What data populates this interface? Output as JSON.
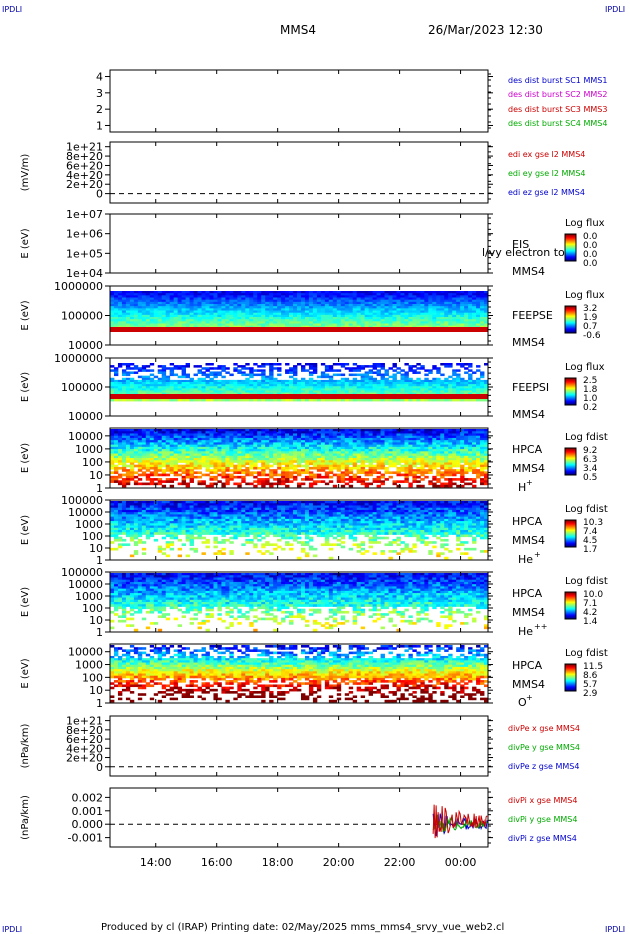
{
  "header": {
    "corner_tl": "IPDLI",
    "corner_tr": "IPDLI",
    "corner_bl": "IPDLI",
    "corner_br": "IPDLI",
    "spacecraft": "MMS4",
    "datetime": "26/Mar/2023 12:30"
  },
  "footer": {
    "text": "Produced by cl (IRAP)   Printing date: 02/May/2025   mms_mms4_srvy_vue_web2.cl"
  },
  "time_axis": {
    "start_hour": 12.5,
    "end_hour": 24.9,
    "tick_labels": [
      "14:00",
      "16:00",
      "18:00",
      "20:00",
      "22:00",
      "00:00"
    ],
    "tick_hours": [
      14,
      16,
      18,
      20,
      22,
      24
    ]
  },
  "chart_data": [
    {
      "type": "line",
      "panel": "des-dist",
      "ylabel": "",
      "ylim": [
        0.6,
        4.4
      ],
      "yscale": "linear",
      "y_ticks": [
        "1",
        "2",
        "3",
        "4"
      ],
      "y_tick_values": [
        1,
        2,
        3,
        4
      ],
      "legend": [
        {
          "text": "des dist burst SC1 MMS1",
          "color": "#0000cc"
        },
        {
          "text": "des dist burst SC2 MMS2",
          "color": "#cc00cc"
        },
        {
          "text": "des dist burst SC3 MMS3",
          "color": "#cc0000"
        },
        {
          "text": "des dist burst SC4 MMS4",
          "color": "#00aa00"
        }
      ]
    },
    {
      "type": "line",
      "panel": "edi",
      "ylabel": "(mV/m)",
      "ylim": [
        -2e+20,
        1.1e+21
      ],
      "yscale": "linear",
      "y_ticks": [
        "1e+21",
        "8e+20",
        "6e+20",
        "4e+20",
        "2e+20",
        "0"
      ],
      "y_tick_values": [
        1e+21,
        8e+20,
        6e+20,
        4e+20,
        2e+20,
        0
      ],
      "zero_line": true,
      "legend": [
        {
          "text": "edi ex gse l2 MMS4",
          "color": "#cc0000"
        },
        {
          "text": "edi ey gse l2 MMS4",
          "color": "#00aa00"
        },
        {
          "text": "edi ez gse l2 MMS4",
          "color": "#0000cc"
        }
      ]
    },
    {
      "type": "heatmap",
      "panel": "eis",
      "ylabel": "E (eV)",
      "yscale": "log",
      "ylim": [
        10000.0,
        10000000.0
      ],
      "y_ticks": [
        "1e+07",
        "1e+06",
        "1e+05",
        "1e+04"
      ],
      "y_tick_values": [
        10000000.0,
        1000000.0,
        100000.0,
        10000.0
      ],
      "instrument": [
        "EIS",
        "MMS4"
      ],
      "overlay_label": "l/vy electron to",
      "colorbar_title": "Log flux",
      "colorbar_ticks": [
        "0.0",
        "0.0",
        "0.0",
        "0.0"
      ],
      "empty": true
    },
    {
      "type": "heatmap",
      "panel": "feepse",
      "ylabel": "E (eV)",
      "yscale": "log",
      "ylim": [
        10000,
        1000000
      ],
      "y_ticks": [
        "1000000",
        "100000",
        "10000"
      ],
      "y_tick_values": [
        1000000,
        100000,
        10000
      ],
      "instrument": [
        "FEEPSE",
        "MMS4"
      ],
      "colorbar_title": "Log flux",
      "colorbar_ticks": [
        "3.2",
        "1.9",
        "0.7",
        "-0.6"
      ]
    },
    {
      "type": "heatmap",
      "panel": "feepsi",
      "ylabel": "E (eV)",
      "yscale": "log",
      "ylim": [
        10000,
        1000000
      ],
      "y_ticks": [
        "1000000",
        "100000",
        "10000"
      ],
      "y_tick_values": [
        1000000,
        100000,
        10000
      ],
      "instrument": [
        "FEEPSI",
        "MMS4"
      ],
      "colorbar_title": "Log flux",
      "colorbar_ticks": [
        "2.5",
        "1.8",
        "1.0",
        "0.2"
      ]
    },
    {
      "type": "heatmap",
      "panel": "hpca-h",
      "ylabel": "E (eV)",
      "yscale": "log",
      "ylim": [
        1,
        40000
      ],
      "y_ticks": [
        "10000",
        "1000",
        "100",
        "10",
        "1"
      ],
      "y_tick_values": [
        10000,
        1000,
        100,
        10,
        1
      ],
      "instrument": [
        "HPCA",
        "MMS4"
      ],
      "species": "H",
      "species_sup": "+",
      "colorbar_title": "Log fdist",
      "colorbar_ticks": [
        "9.2",
        "6.3",
        "3.4",
        "0.5"
      ]
    },
    {
      "type": "heatmap",
      "panel": "hpca-he",
      "ylabel": "E (eV)",
      "yscale": "log",
      "ylim": [
        1,
        100000
      ],
      "y_ticks": [
        "100000",
        "10000",
        "1000",
        "100",
        "10",
        "1"
      ],
      "y_tick_values": [
        100000,
        10000,
        1000,
        100,
        10,
        1
      ],
      "instrument": [
        "HPCA",
        "MMS4"
      ],
      "species": "He",
      "species_sup": "+",
      "colorbar_title": "Log fdist",
      "colorbar_ticks": [
        "10.3",
        "7.4",
        "4.5",
        "1.7"
      ]
    },
    {
      "type": "heatmap",
      "panel": "hpca-hepp",
      "ylabel": "E (eV)",
      "yscale": "log",
      "ylim": [
        1,
        100000
      ],
      "y_ticks": [
        "100000",
        "10000",
        "1000",
        "100",
        "10",
        "1"
      ],
      "y_tick_values": [
        100000,
        10000,
        1000,
        100,
        10,
        1
      ],
      "instrument": [
        "HPCA",
        "MMS4"
      ],
      "species": "He",
      "species_sup": "++",
      "colorbar_title": "Log fdist",
      "colorbar_ticks": [
        "10.0",
        "7.1",
        "4.2",
        "1.4"
      ]
    },
    {
      "type": "heatmap",
      "panel": "hpca-o",
      "ylabel": "E (eV)",
      "yscale": "log",
      "ylim": [
        1,
        40000
      ],
      "y_ticks": [
        "10000",
        "1000",
        "100",
        "10",
        "1"
      ],
      "y_tick_values": [
        10000,
        1000,
        100,
        10,
        1
      ],
      "instrument": [
        "HPCA",
        "MMS4"
      ],
      "species": "O",
      "species_sup": "+",
      "colorbar_title": "Log fdist",
      "colorbar_ticks": [
        "11.5",
        "8.6",
        "5.7",
        "2.9"
      ]
    },
    {
      "type": "line",
      "panel": "divpe",
      "ylabel": "(nPa/km)",
      "ylim": [
        -2e+20,
        1.1e+21
      ],
      "yscale": "linear",
      "y_ticks": [
        "1e+21",
        "8e+20",
        "6e+20",
        "4e+20",
        "2e+20",
        "0"
      ],
      "y_tick_values": [
        1e+21,
        8e+20,
        6e+20,
        4e+20,
        2e+20,
        0
      ],
      "zero_line": true,
      "legend": [
        {
          "text": "divPe x gse MMS4",
          "color": "#cc0000"
        },
        {
          "text": "divPe y gse MMS4",
          "color": "#00aa00"
        },
        {
          "text": "divPe z gse MMS4",
          "color": "#0000cc"
        }
      ]
    },
    {
      "type": "line",
      "panel": "divpi",
      "ylabel": "(nPa/km)",
      "ylim": [
        -0.0017,
        0.0027
      ],
      "yscale": "linear",
      "y_ticks": [
        "0.002",
        "0.001",
        "0.000",
        "-0.001"
      ],
      "y_tick_values": [
        0.002,
        0.001,
        0.0,
        -0.001
      ],
      "zero_line": true,
      "data_start_hour": 23.1,
      "legend": [
        {
          "text": "divPi x gse MMS4",
          "color": "#cc0000"
        },
        {
          "text": "divPi y gse MMS4",
          "color": "#00aa00"
        },
        {
          "text": "divPi z gse MMS4",
          "color": "#0000cc"
        }
      ]
    }
  ]
}
